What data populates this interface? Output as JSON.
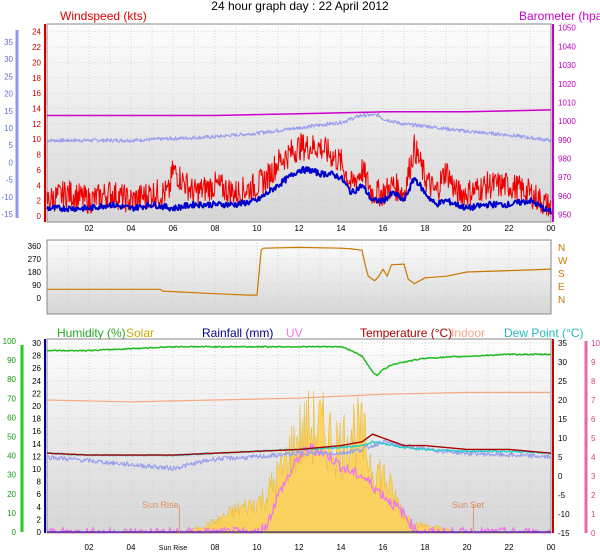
{
  "title": "24 hour graph day : 22 April 2012",
  "colors": {
    "windspeed": "#ee0000",
    "windavg": "#0000cc",
    "gust_band": "#9aa0ee",
    "barometer": "#cc00cc",
    "direction": "#cc7700",
    "humidity": "#22bb22",
    "solar": "#ffd04a",
    "rainfall": "#000088",
    "uv": "#ee77ee",
    "temperature": "#aa0000",
    "indoor": "#f5a986",
    "dewpoint": "#22cccc",
    "lowerband": "#9aa0ee",
    "panel_bg_top": "#fcfcfc",
    "panel_bg_bottom": "#d8d8d8",
    "left_axis_blue": "#8a9ae8",
    "left_axis_green": "#22cc22",
    "right_axis_pink": "#ee66aa",
    "red_axis": "#cc0000"
  },
  "chart_data": [
    {
      "type": "line",
      "title": "24 hour graph day : 22 April 2012",
      "legend": [
        "Windspeed (kts)",
        "Barometer (hpa)"
      ],
      "x_ticks": [
        "02",
        "04",
        "06",
        "08",
        "10",
        "12",
        "14",
        "16",
        "18",
        "20",
        "22",
        "00"
      ],
      "x_range_hours": [
        0,
        24
      ],
      "left_outer_axis": {
        "ticks": [
          "35",
          "30",
          "25",
          "20",
          "15",
          "10",
          "5",
          "0",
          "-5",
          "-10",
          "-15"
        ],
        "range": [
          -15,
          35
        ]
      },
      "left_axis": {
        "label": "Windspeed (kts)",
        "ticks": [
          "24",
          "22",
          "20",
          "18",
          "16",
          "14",
          "12",
          "10",
          "8",
          "6",
          "4",
          "2",
          "0"
        ],
        "range": [
          0,
          25
        ]
      },
      "right_axis": {
        "label": "Barometer (hpa)",
        "ticks": [
          "1050",
          "1040",
          "1030",
          "1020",
          "1010",
          "1000",
          "990",
          "980",
          "970",
          "960",
          "950"
        ],
        "range": [
          946,
          1052
        ]
      },
      "series": [
        {
          "name": "Windspeed (kts)",
          "axis": "left",
          "x": [
            0,
            1,
            2,
            3,
            4,
            5,
            5.8,
            6,
            7,
            8,
            9,
            10,
            10.5,
            11,
            11.5,
            12,
            12.5,
            13,
            13.5,
            14,
            14.5,
            15,
            15.5,
            16,
            16.5,
            17,
            17.5,
            18,
            18.5,
            19,
            19.5,
            20,
            21,
            22,
            23,
            24
          ],
          "y": [
            2,
            3,
            2,
            3,
            2,
            3,
            3,
            6,
            3,
            4,
            3,
            4,
            5,
            7,
            8,
            9,
            9,
            9,
            8,
            7,
            4,
            6,
            3,
            3,
            4,
            3,
            9,
            5,
            3,
            6,
            3,
            3,
            4,
            4,
            3,
            1
          ]
        },
        {
          "name": "Windspeed avg",
          "axis": "left",
          "x": [
            0,
            1,
            2,
            3,
            4,
            5,
            6,
            7,
            8,
            9,
            10,
            10.5,
            11,
            11.5,
            12,
            12.5,
            13,
            13.5,
            14,
            14.5,
            15,
            15.5,
            16,
            16.5,
            17,
            17.5,
            18,
            18.5,
            19,
            19.5,
            20,
            21,
            22,
            23,
            24
          ],
          "y": [
            1,
            1,
            1,
            1.5,
            1,
            1.5,
            1,
            1.5,
            1.5,
            1.5,
            2,
            3,
            4,
            5,
            6,
            6,
            5.5,
            5.5,
            5,
            3,
            4,
            2,
            2,
            3,
            2,
            5,
            3,
            1.5,
            2,
            1.5,
            1,
            1.5,
            1.5,
            2,
            0.5
          ]
        },
        {
          "name": "Band (left outer axis)",
          "axis": "outer",
          "x": [
            0,
            2,
            4,
            6,
            8,
            10,
            12,
            14,
            15,
            15.8,
            16,
            17,
            18,
            20,
            22,
            24
          ],
          "y": [
            6,
            6,
            6,
            6.5,
            7,
            8,
            9.5,
            11,
            13,
            13,
            12,
            10.5,
            10,
            8.5,
            7.5,
            6
          ]
        },
        {
          "name": "Barometer (hpa)",
          "axis": "right",
          "x": [
            0,
            4,
            8,
            12,
            16,
            20,
            24
          ],
          "y": [
            1003,
            1003,
            1003,
            1004,
            1005,
            1005,
            1006
          ]
        }
      ]
    },
    {
      "type": "line",
      "left_axis": {
        "ticks": [
          "360",
          "270",
          "180",
          "90",
          "0"
        ],
        "range": [
          0,
          360
        ]
      },
      "right_axis": {
        "ticks": [
          "N",
          "W",
          "S",
          "E",
          "N"
        ]
      },
      "series": [
        {
          "name": "Wind direction",
          "axis": "left",
          "x": [
            0,
            3,
            5.4,
            5.5,
            8,
            9.6,
            10,
            10.2,
            10.3,
            12,
            14,
            14.5,
            15,
            15.2,
            15.3,
            15.6,
            15.8,
            16,
            16.2,
            16.4,
            17,
            17.2,
            17.5,
            18,
            19,
            20,
            22,
            24
          ],
          "y": [
            60,
            60,
            60,
            48,
            30,
            20,
            20,
            330,
            345,
            350,
            345,
            340,
            330,
            200,
            150,
            120,
            150,
            200,
            150,
            230,
            235,
            130,
            100,
            140,
            150,
            180,
            190,
            200
          ]
        }
      ]
    },
    {
      "type": "line",
      "legend": [
        "Humidity (%)",
        "Solar",
        "Rainfall (mm)",
        "UV",
        "Temperature (°C)",
        "Indoor",
        "Dew Point (°C)"
      ],
      "x_ticks": [
        "02",
        "04",
        "Sun Rise",
        "08",
        "10",
        "12",
        "14",
        "16",
        "18",
        "20",
        "22",
        "00"
      ],
      "annotations": [
        "Sun Rise",
        "Sun Set"
      ],
      "left_outer_axis": {
        "ticks": [
          "100",
          "90",
          "80",
          "70",
          "60",
          "50",
          "40",
          "30",
          "20",
          "10",
          "0"
        ],
        "range": [
          0,
          100
        ]
      },
      "left_axis": {
        "ticks": [
          "30",
          "28",
          "26",
          "24",
          "22",
          "20",
          "18",
          "16",
          "14",
          "12",
          "10",
          "8",
          "6",
          "4",
          "2",
          "0"
        ],
        "range": [
          0,
          30
        ]
      },
      "right_axis": {
        "ticks": [
          "35",
          "30",
          "25",
          "20",
          "15",
          "10",
          "5",
          "0",
          "-5",
          "-10",
          "-15"
        ],
        "range": [
          -15,
          35
        ]
      },
      "right_outer_axis": {
        "ticks": [
          "10",
          "9",
          "8",
          "7",
          "6",
          "5",
          "4",
          "3",
          "2",
          "1",
          "0"
        ],
        "range": [
          0,
          10
        ]
      },
      "series": [
        {
          "name": "Humidity (%)",
          "axis": "left_outer",
          "x": [
            0,
            2,
            4,
            6,
            8,
            10,
            12,
            14,
            14.5,
            15,
            15.5,
            15.7,
            16,
            16.5,
            17,
            18,
            20,
            22,
            24
          ],
          "y": [
            95,
            95,
            96,
            97,
            97,
            97,
            97,
            97,
            95,
            92,
            84,
            82,
            85,
            88,
            89,
            91,
            92,
            93,
            93
          ]
        },
        {
          "name": "Indoor",
          "axis": "right",
          "x": [
            0,
            4,
            8,
            12,
            16,
            20,
            24
          ],
          "y": [
            20,
            19.5,
            20,
            20.5,
            21.5,
            22,
            22
          ]
        },
        {
          "name": "Temperature (°C)",
          "axis": "right",
          "x": [
            0,
            2,
            4,
            6,
            8,
            10,
            12,
            14,
            15,
            15.5,
            16,
            16.5,
            17,
            18,
            20,
            22,
            24
          ],
          "y": [
            6,
            5.5,
            5.5,
            5.5,
            6,
            6.5,
            7,
            8,
            9,
            11,
            10,
            9,
            8,
            8,
            7,
            7,
            6
          ]
        },
        {
          "name": "Dew Point (°C)",
          "axis": "right",
          "x": [
            0,
            2,
            4,
            6,
            8,
            10,
            12,
            14,
            15,
            15.5,
            16,
            16.5,
            17,
            18,
            20,
            22,
            24
          ],
          "y": [
            6,
            5.5,
            5.5,
            5.5,
            6,
            6.5,
            7,
            7.5,
            8,
            9,
            8.5,
            8,
            7.5,
            7,
            6.5,
            6.5,
            6
          ]
        },
        {
          "name": "Band (lower)",
          "axis": "right",
          "x": [
            0,
            2,
            4,
            6,
            8,
            10,
            12,
            14,
            15,
            16,
            17,
            18,
            20,
            22,
            24
          ],
          "y": [
            5,
            4,
            3,
            2,
            4.5,
            5,
            6,
            6,
            7,
            9,
            8,
            7,
            6,
            5.5,
            5
          ]
        },
        {
          "name": "Solar",
          "axis": "right_outer",
          "x": [
            0,
            6.5,
            7,
            8,
            9,
            10,
            10.5,
            11,
            11.5,
            12,
            12.5,
            13,
            13.5,
            14,
            14.5,
            15,
            15.5,
            16,
            16.5,
            17,
            17.5,
            18,
            19,
            19.5,
            24
          ],
          "y": [
            0,
            0,
            0.2,
            0.6,
            1.2,
            1.6,
            2,
            3,
            4,
            5,
            5.5,
            5.5,
            5,
            4.5,
            5.5,
            5,
            3.5,
            3,
            2,
            1,
            0.5,
            0.4,
            0.2,
            0,
            0
          ]
        },
        {
          "name": "UV",
          "axis": "right_outer",
          "x": [
            0,
            10,
            10.5,
            11,
            11.5,
            12,
            12.5,
            13,
            13.5,
            14,
            14.5,
            15,
            15.5,
            16,
            16.5,
            17,
            17.5,
            18,
            24
          ],
          "y": [
            0,
            0,
            0.5,
            2,
            3,
            4,
            4.5,
            4.3,
            4,
            3.5,
            3.2,
            3,
            2.5,
            2,
            1.5,
            1,
            0.2,
            0,
            0
          ]
        },
        {
          "name": "Rainfall (mm)",
          "axis": "left",
          "x": [
            0,
            24
          ],
          "y": [
            0,
            0
          ]
        }
      ]
    }
  ]
}
